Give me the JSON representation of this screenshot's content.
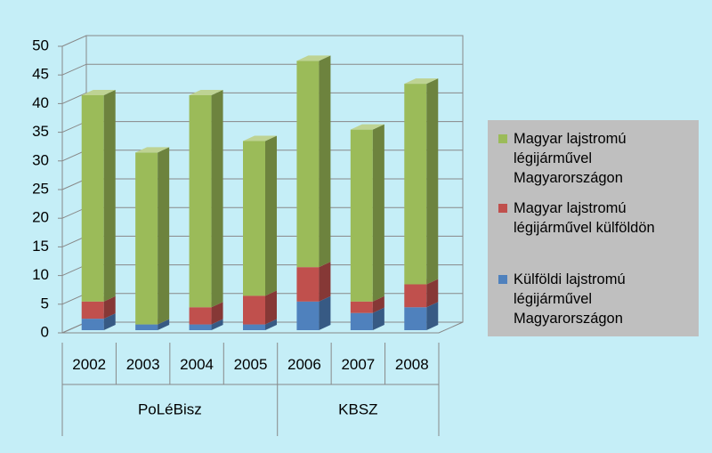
{
  "chart_data": {
    "type": "bar3d_stacked",
    "categories": [
      "2002",
      "2003",
      "2004",
      "2005",
      "2006",
      "2007",
      "2008"
    ],
    "category_groups": [
      "PoLéBisz",
      "PoLéBisz",
      "PoLéBisz",
      "PoLéBisz",
      "KBSZ",
      "KBSZ",
      "KBSZ"
    ],
    "series": [
      {
        "name": "Külföldi lajstromú légijárművel Magyarországon",
        "color": "#4f81bd",
        "values": [
          2,
          1,
          1,
          1,
          5,
          3,
          4
        ]
      },
      {
        "name": "Magyar lajstromú légijárművel külföldön",
        "color": "#c0504d",
        "values": [
          3,
          0,
          3,
          5,
          6,
          2,
          4
        ]
      },
      {
        "name": "Magyar lajstromú légijárművel Magyarországon",
        "color": "#9bbb59",
        "values": [
          36,
          30,
          37,
          27,
          36,
          30,
          35
        ]
      }
    ],
    "ylim": [
      0,
      50
    ],
    "yticks": [
      0,
      5,
      10,
      15,
      20,
      25,
      30,
      35,
      40,
      45,
      50
    ],
    "grid": true,
    "legend": "right"
  }
}
